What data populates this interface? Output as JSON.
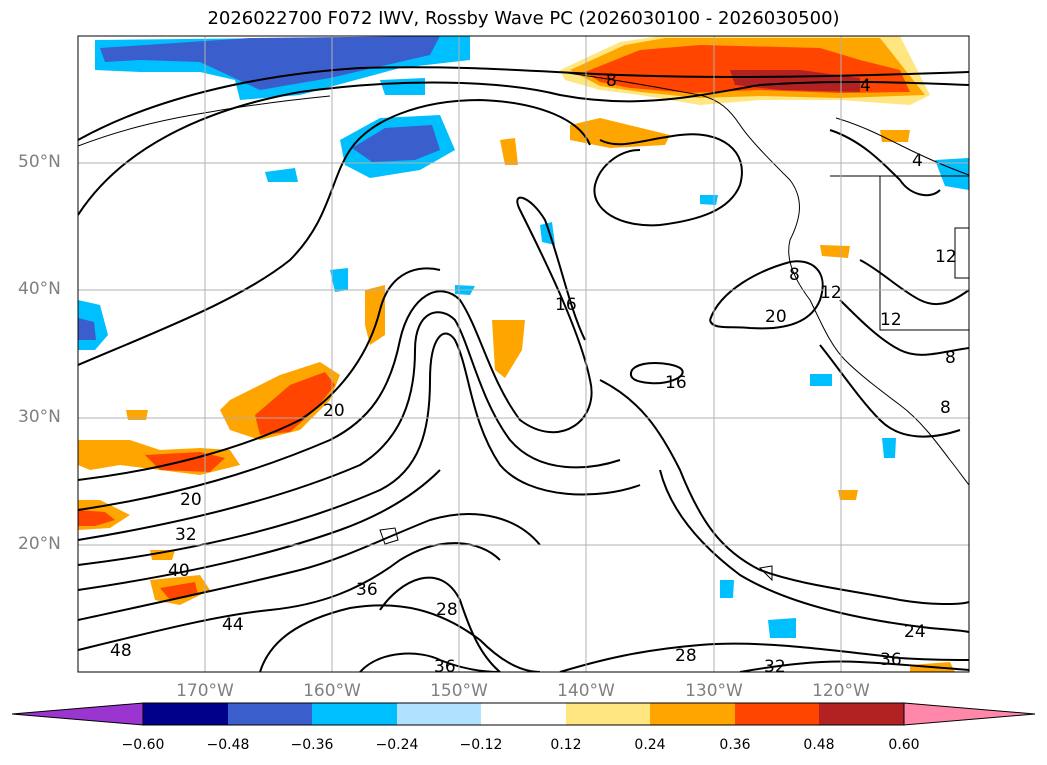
{
  "title": "2026022700 F072 IWV, Rossby Wave PC (2026030100 - 2026030500)",
  "lat_labels": [
    "50°N",
    "40°N",
    "30°N",
    "20°N"
  ],
  "lon_labels": [
    "170°W",
    "160°W",
    "150°W",
    "140°W",
    "130°W",
    "120°W"
  ],
  "contour_labels": [
    "8",
    "4",
    "4",
    "16",
    "16",
    "20",
    "20",
    "20",
    "32",
    "40",
    "44",
    "48",
    "36",
    "28",
    "28",
    "36",
    "24",
    "32",
    "36",
    "8",
    "12",
    "12",
    "8",
    "8",
    "12"
  ],
  "colorbar": {
    "ticks": [
      "−0.60",
      "−0.48",
      "−0.36",
      "−0.24",
      "−0.12",
      "0.12",
      "0.24",
      "0.36",
      "0.48",
      "0.60"
    ],
    "colors": [
      "#9a35cf",
      "#00008b",
      "#3a5ecc",
      "#00bfff",
      "#b0e2ff",
      "#ffffff",
      "#ffe680",
      "#ffa500",
      "#ff4500",
      "#b22222",
      "#ff88aa"
    ]
  }
}
